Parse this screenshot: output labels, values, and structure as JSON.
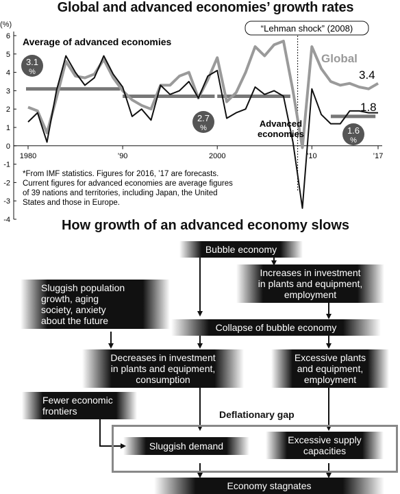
{
  "chart_title": "Global and advanced economies’ growth rates",
  "section2_title": "How growth of an advanced economy slows",
  "chart_data": {
    "type": "line",
    "title": "Global and advanced economies’ growth rates",
    "ylabel": "(%)",
    "ylim": [
      -4,
      6
    ],
    "yticks": [
      "6",
      "5",
      "4",
      "3",
      "2",
      "1",
      "0",
      "-1",
      "-2",
      "-3",
      "-4"
    ],
    "xticks": [
      {
        "year": 1980,
        "label": "1980"
      },
      {
        "year": 1990,
        "label": "’90"
      },
      {
        "year": 2000,
        "label": "2000"
      },
      {
        "year": 2010,
        "label": "’10"
      },
      {
        "year": 2017,
        "label": "’17"
      }
    ],
    "series": [
      {
        "name": "Global",
        "color": "#9a9a9a",
        "x": [
          1980,
          1981,
          1982,
          1983,
          1984,
          1985,
          1986,
          1987,
          1988,
          1989,
          1990,
          1991,
          1992,
          1993,
          1994,
          1995,
          1996,
          1997,
          1998,
          1999,
          2000,
          2001,
          2002,
          2003,
          2004,
          2005,
          2006,
          2007,
          2008,
          2009,
          2010,
          2011,
          2012,
          2013,
          2014,
          2015,
          2016,
          2017
        ],
        "values": [
          2.1,
          1.9,
          0.7,
          2.6,
          4.6,
          3.8,
          3.7,
          3.9,
          4.7,
          3.7,
          3.0,
          2.5,
          2.2,
          2.0,
          3.3,
          3.3,
          3.8,
          4.0,
          2.6,
          3.6,
          4.8,
          2.4,
          2.9,
          4.0,
          5.4,
          4.9,
          5.5,
          5.7,
          3.0,
          -0.1,
          5.4,
          4.2,
          3.5,
          3.3,
          3.4,
          3.2,
          3.1,
          3.4
        ]
      },
      {
        "name": "Advanced economies",
        "color": "#111111",
        "x": [
          1980,
          1981,
          1982,
          1983,
          1984,
          1985,
          1986,
          1987,
          1988,
          1989,
          1990,
          1991,
          1992,
          1993,
          1994,
          1995,
          1996,
          1997,
          1998,
          1999,
          2000,
          2001,
          2002,
          2003,
          2004,
          2005,
          2006,
          2007,
          2008,
          2009,
          2010,
          2011,
          2012,
          2013,
          2014,
          2015,
          2016,
          2017
        ],
        "values": [
          1.3,
          1.8,
          0.2,
          3.0,
          4.9,
          4.0,
          3.3,
          3.7,
          4.9,
          3.9,
          3.2,
          1.6,
          2.0,
          1.4,
          3.3,
          2.8,
          3.0,
          3.5,
          2.6,
          3.8,
          4.1,
          1.5,
          1.8,
          2.0,
          3.2,
          2.8,
          3.0,
          2.7,
          0.2,
          -3.4,
          3.1,
          1.7,
          1.2,
          1.2,
          1.9,
          1.9,
          1.8,
          1.8
        ]
      }
    ],
    "averages": [
      {
        "from": 1980,
        "to": 1989,
        "value": 3.1,
        "label": "3.1",
        "unit": "%"
      },
      {
        "from": 1990,
        "to": 1999,
        "value": 2.7,
        "label": "2.7",
        "unit": "%"
      },
      {
        "from": 2000,
        "to": 2007,
        "value": 2.7
      },
      {
        "from": 2012,
        "to": 2016,
        "value": 1.6,
        "label": "1.6",
        "unit": "%"
      }
    ],
    "end_labels": {
      "global": "3.4",
      "advanced": "1.8"
    },
    "legend_labels": {
      "average": "Average of advanced economies",
      "global": "Global",
      "advanced_line1": "Advanced",
      "advanced_line2": "economies"
    },
    "annotation": {
      "text": "“Lehman shock” (2008)",
      "year": 2008.5
    },
    "footnote": [
      "*From IMF statistics. Figures for 2016, ’17 are forecasts.",
      "Current figures for advanced economies are average figures",
      "of 39 nations and territories, including Japan, the United",
      "States and those in Europe."
    ]
  },
  "flow": {
    "bubble": "Bubble economy",
    "increases": [
      "Increases in investment",
      "in plants and equipment,",
      "employment"
    ],
    "sluggish_pop": [
      "Sluggish population",
      "growth, aging",
      "society, anxiety",
      "about the future"
    ],
    "collapse": "Collapse of bubble economy",
    "decreases": [
      "Decreases in investment",
      "in plants and equipment,",
      "consumption"
    ],
    "excessive_plants": [
      "Excessive plants",
      "and equipment,",
      "employment"
    ],
    "fewer": [
      "Fewer economic",
      "frontiers"
    ],
    "deflationary_gap": "Deflationary gap",
    "sluggish_demand": "Sluggish demand",
    "excessive_supply": [
      "Excessive supply",
      "capacities"
    ],
    "stagnates": "Economy stagnates"
  }
}
